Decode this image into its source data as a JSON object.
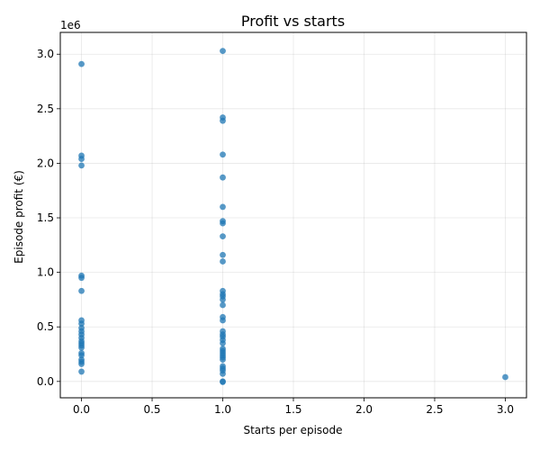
{
  "chart_data": {
    "type": "scatter",
    "title": "Profit vs starts",
    "xlabel": "Starts per episode",
    "ylabel": "Episode profit (€)",
    "y_offset_label": "1e6",
    "xlim": [
      -0.15,
      3.15
    ],
    "ylim": [
      -150000,
      3200000
    ],
    "x_ticks": [
      0.0,
      0.5,
      1.0,
      1.5,
      2.0,
      2.5,
      3.0
    ],
    "x_tick_labels": [
      "0.0",
      "0.5",
      "1.0",
      "1.5",
      "2.0",
      "2.5",
      "3.0"
    ],
    "y_ticks": [
      0,
      500000,
      1000000,
      1500000,
      2000000,
      2500000,
      3000000
    ],
    "y_tick_labels": [
      "0.0",
      "0.5",
      "1.0",
      "1.5",
      "2.0",
      "2.5",
      "3.0"
    ],
    "grid": true,
    "marker_color": "#1f77b4",
    "points": [
      {
        "x": 0,
        "y": 2910000
      },
      {
        "x": 0,
        "y": 2070000
      },
      {
        "x": 0,
        "y": 2040000
      },
      {
        "x": 0,
        "y": 1980000
      },
      {
        "x": 0,
        "y": 970000
      },
      {
        "x": 0,
        "y": 950000
      },
      {
        "x": 0,
        "y": 830000
      },
      {
        "x": 0,
        "y": 560000
      },
      {
        "x": 0,
        "y": 530000
      },
      {
        "x": 0,
        "y": 490000
      },
      {
        "x": 0,
        "y": 460000
      },
      {
        "x": 0,
        "y": 430000
      },
      {
        "x": 0,
        "y": 400000
      },
      {
        "x": 0,
        "y": 370000
      },
      {
        "x": 0,
        "y": 350000
      },
      {
        "x": 0,
        "y": 330000
      },
      {
        "x": 0,
        "y": 310000
      },
      {
        "x": 0,
        "y": 260000
      },
      {
        "x": 0,
        "y": 240000
      },
      {
        "x": 0,
        "y": 200000
      },
      {
        "x": 0,
        "y": 180000
      },
      {
        "x": 0,
        "y": 160000
      },
      {
        "x": 0,
        "y": 90000
      },
      {
        "x": 1,
        "y": 3030000
      },
      {
        "x": 1,
        "y": 2420000
      },
      {
        "x": 1,
        "y": 2390000
      },
      {
        "x": 1,
        "y": 2080000
      },
      {
        "x": 1,
        "y": 1870000
      },
      {
        "x": 1,
        "y": 1600000
      },
      {
        "x": 1,
        "y": 1470000
      },
      {
        "x": 1,
        "y": 1450000
      },
      {
        "x": 1,
        "y": 1330000
      },
      {
        "x": 1,
        "y": 1160000
      },
      {
        "x": 1,
        "y": 1100000
      },
      {
        "x": 1,
        "y": 830000
      },
      {
        "x": 1,
        "y": 800000
      },
      {
        "x": 1,
        "y": 780000
      },
      {
        "x": 1,
        "y": 750000
      },
      {
        "x": 1,
        "y": 700000
      },
      {
        "x": 1,
        "y": 590000
      },
      {
        "x": 1,
        "y": 560000
      },
      {
        "x": 1,
        "y": 460000
      },
      {
        "x": 1,
        "y": 430000
      },
      {
        "x": 1,
        "y": 410000
      },
      {
        "x": 1,
        "y": 380000
      },
      {
        "x": 1,
        "y": 350000
      },
      {
        "x": 1,
        "y": 300000
      },
      {
        "x": 1,
        "y": 280000
      },
      {
        "x": 1,
        "y": 260000
      },
      {
        "x": 1,
        "y": 240000
      },
      {
        "x": 1,
        "y": 220000
      },
      {
        "x": 1,
        "y": 200000
      },
      {
        "x": 1,
        "y": 140000
      },
      {
        "x": 1,
        "y": 120000
      },
      {
        "x": 1,
        "y": 100000
      },
      {
        "x": 1,
        "y": 70000
      },
      {
        "x": 1,
        "y": 0
      },
      {
        "x": 1,
        "y": -5000
      },
      {
        "x": 3,
        "y": 40000
      }
    ]
  }
}
